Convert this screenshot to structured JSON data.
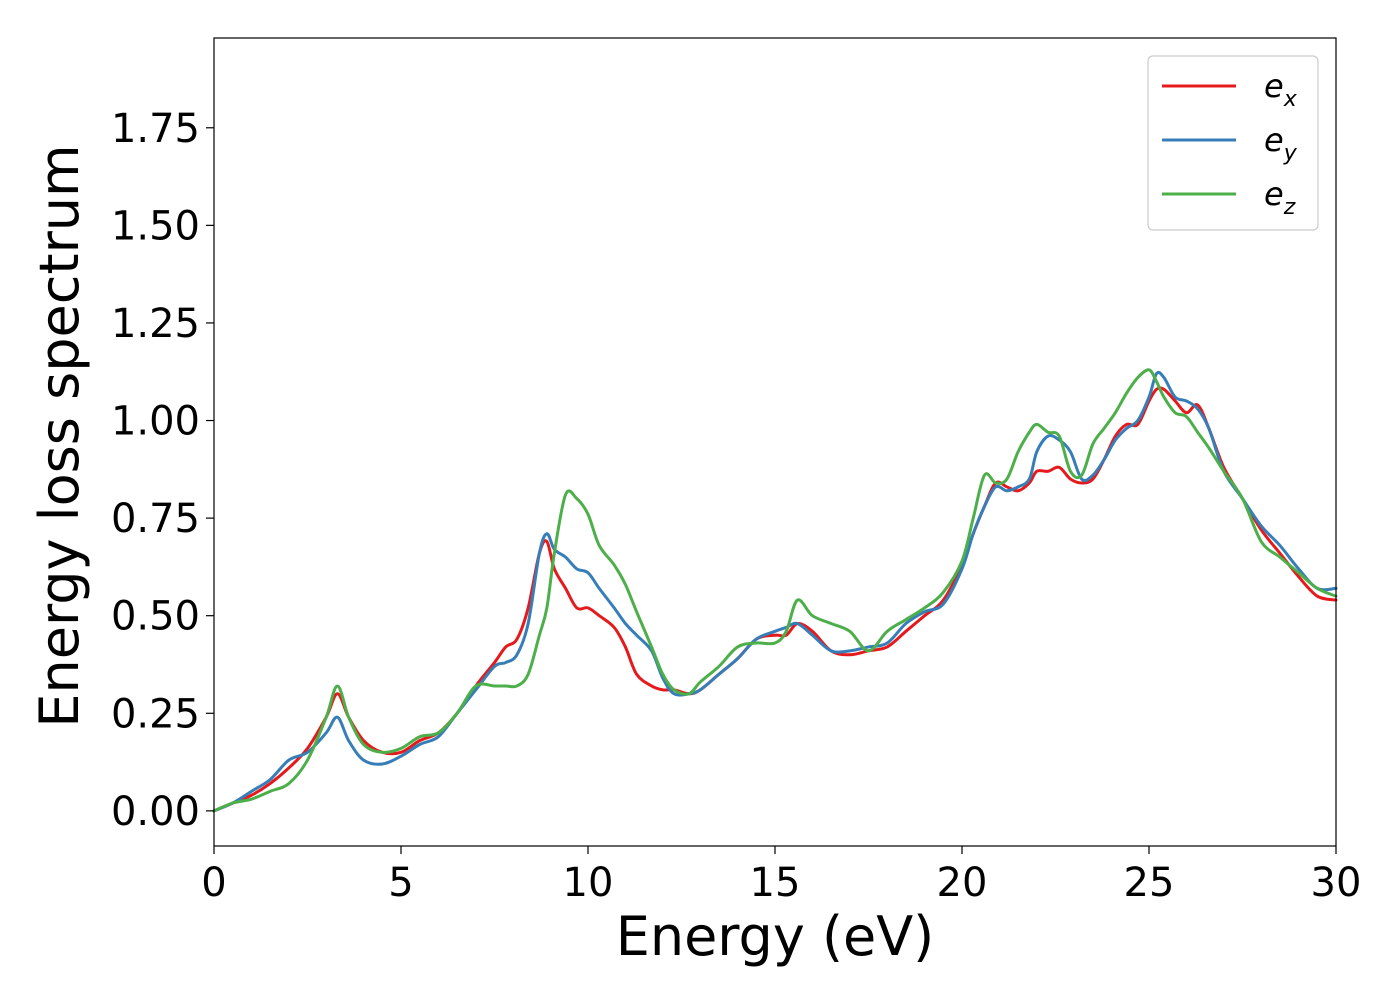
{
  "chart_data": {
    "type": "line",
    "xlabel": "Energy (eV)",
    "ylabel": "Energy loss spectrum",
    "xlim": [
      0,
      30
    ],
    "ylim": [
      -0.09,
      1.98
    ],
    "xticks": [
      "0",
      "5",
      "10",
      "15",
      "20",
      "25",
      "30"
    ],
    "yticks": [
      "0.00",
      "0.25",
      "0.50",
      "0.75",
      "1.00",
      "1.25",
      "1.50",
      "1.75"
    ],
    "grid": false,
    "legend_position": "top-right",
    "series": [
      {
        "name": "e_x",
        "label_base": "e",
        "label_sub": "x",
        "color": "#e41a1c",
        "x": [
          0,
          0.5,
          1.0,
          1.5,
          2.0,
          2.5,
          3.0,
          3.3,
          3.6,
          4.0,
          4.5,
          5.0,
          5.5,
          6.0,
          6.5,
          7.0,
          7.5,
          7.8,
          8.1,
          8.4,
          8.7,
          8.9,
          9.1,
          9.4,
          9.7,
          10.0,
          10.3,
          10.7,
          11.0,
          11.3,
          11.7,
          12.0,
          12.3,
          12.7,
          13.0,
          13.5,
          14.0,
          14.5,
          15.0,
          15.3,
          15.6,
          16.0,
          16.5,
          17.0,
          17.5,
          18.0,
          18.5,
          19.0,
          19.5,
          20.0,
          20.3,
          20.6,
          20.9,
          21.2,
          21.5,
          21.8,
          22.0,
          22.3,
          22.6,
          22.9,
          23.2,
          23.5,
          23.8,
          24.1,
          24.4,
          24.7,
          25.0,
          25.2,
          25.4,
          25.7,
          26.0,
          26.3,
          26.6,
          27.0,
          27.5,
          28.0,
          28.5,
          29.0,
          29.5,
          30.0
        ],
        "y": [
          0.0,
          0.02,
          0.04,
          0.07,
          0.11,
          0.16,
          0.24,
          0.3,
          0.24,
          0.18,
          0.15,
          0.15,
          0.18,
          0.2,
          0.25,
          0.32,
          0.38,
          0.42,
          0.44,
          0.52,
          0.66,
          0.69,
          0.62,
          0.57,
          0.52,
          0.52,
          0.5,
          0.47,
          0.42,
          0.35,
          0.32,
          0.31,
          0.31,
          0.3,
          0.31,
          0.35,
          0.39,
          0.44,
          0.45,
          0.45,
          0.48,
          0.46,
          0.41,
          0.4,
          0.41,
          0.42,
          0.46,
          0.5,
          0.54,
          0.63,
          0.71,
          0.78,
          0.84,
          0.83,
          0.82,
          0.84,
          0.87,
          0.87,
          0.88,
          0.85,
          0.84,
          0.85,
          0.9,
          0.96,
          0.99,
          0.99,
          1.05,
          1.08,
          1.08,
          1.05,
          1.02,
          1.04,
          0.98,
          0.88,
          0.8,
          0.72,
          0.66,
          0.6,
          0.55,
          0.54
        ]
      },
      {
        "name": "e_y",
        "label_base": "e",
        "label_sub": "y",
        "color": "#377eb8",
        "x": [
          0,
          0.5,
          1.0,
          1.5,
          2.0,
          2.5,
          3.0,
          3.3,
          3.6,
          4.0,
          4.5,
          5.0,
          5.5,
          6.0,
          6.5,
          7.0,
          7.5,
          7.8,
          8.1,
          8.4,
          8.7,
          8.9,
          9.1,
          9.4,
          9.7,
          10.0,
          10.3,
          10.7,
          11.0,
          11.3,
          11.7,
          12.0,
          12.3,
          12.7,
          13.0,
          13.5,
          14.0,
          14.5,
          15.0,
          15.3,
          15.6,
          16.0,
          16.5,
          17.0,
          17.5,
          18.0,
          18.5,
          19.0,
          19.5,
          20.0,
          20.3,
          20.6,
          20.9,
          21.2,
          21.5,
          21.8,
          22.0,
          22.3,
          22.6,
          22.9,
          23.2,
          23.5,
          23.8,
          24.1,
          24.4,
          24.7,
          25.0,
          25.2,
          25.4,
          25.7,
          26.0,
          26.3,
          26.6,
          27.0,
          27.5,
          28.0,
          28.5,
          29.0,
          29.5,
          30.0
        ],
        "y": [
          0.0,
          0.02,
          0.05,
          0.08,
          0.13,
          0.15,
          0.2,
          0.24,
          0.18,
          0.13,
          0.12,
          0.14,
          0.17,
          0.19,
          0.25,
          0.31,
          0.37,
          0.38,
          0.4,
          0.48,
          0.66,
          0.71,
          0.67,
          0.65,
          0.62,
          0.61,
          0.57,
          0.52,
          0.48,
          0.45,
          0.41,
          0.34,
          0.3,
          0.3,
          0.31,
          0.35,
          0.39,
          0.44,
          0.46,
          0.47,
          0.48,
          0.45,
          0.41,
          0.41,
          0.42,
          0.43,
          0.48,
          0.51,
          0.53,
          0.62,
          0.71,
          0.78,
          0.83,
          0.82,
          0.83,
          0.85,
          0.92,
          0.96,
          0.95,
          0.92,
          0.85,
          0.86,
          0.9,
          0.95,
          0.98,
          1.0,
          1.06,
          1.12,
          1.11,
          1.06,
          1.05,
          1.03,
          0.98,
          0.87,
          0.8,
          0.73,
          0.68,
          0.62,
          0.57,
          0.57
        ]
      },
      {
        "name": "e_z",
        "label_base": "e",
        "label_sub": "z",
        "color": "#4daf4a",
        "x": [
          0,
          0.5,
          1.0,
          1.5,
          2.0,
          2.5,
          3.0,
          3.3,
          3.6,
          4.0,
          4.5,
          5.0,
          5.5,
          6.0,
          6.5,
          7.0,
          7.5,
          7.8,
          8.1,
          8.4,
          8.7,
          8.9,
          9.1,
          9.4,
          9.7,
          10.0,
          10.3,
          10.7,
          11.0,
          11.3,
          11.7,
          12.0,
          12.3,
          12.7,
          13.0,
          13.5,
          14.0,
          14.5,
          15.0,
          15.3,
          15.6,
          16.0,
          16.5,
          17.0,
          17.5,
          18.0,
          18.5,
          19.0,
          19.5,
          20.0,
          20.3,
          20.6,
          20.9,
          21.2,
          21.5,
          21.8,
          22.0,
          22.3,
          22.6,
          22.9,
          23.2,
          23.5,
          23.8,
          24.1,
          24.4,
          24.7,
          25.0,
          25.2,
          25.4,
          25.7,
          26.0,
          26.3,
          26.6,
          27.0,
          27.5,
          28.0,
          28.5,
          29.0,
          29.5,
          30.0
        ],
        "y": [
          0.0,
          0.02,
          0.03,
          0.05,
          0.07,
          0.13,
          0.24,
          0.32,
          0.24,
          0.17,
          0.15,
          0.16,
          0.19,
          0.2,
          0.25,
          0.32,
          0.32,
          0.32,
          0.32,
          0.35,
          0.45,
          0.52,
          0.66,
          0.81,
          0.8,
          0.76,
          0.68,
          0.63,
          0.58,
          0.51,
          0.42,
          0.35,
          0.31,
          0.3,
          0.33,
          0.37,
          0.42,
          0.43,
          0.43,
          0.46,
          0.54,
          0.5,
          0.48,
          0.46,
          0.41,
          0.46,
          0.49,
          0.52,
          0.56,
          0.64,
          0.75,
          0.86,
          0.84,
          0.85,
          0.92,
          0.97,
          0.99,
          0.97,
          0.96,
          0.87,
          0.86,
          0.94,
          0.98,
          1.02,
          1.07,
          1.11,
          1.13,
          1.1,
          1.06,
          1.02,
          1.01,
          0.97,
          0.93,
          0.87,
          0.8,
          0.69,
          0.65,
          0.61,
          0.57,
          0.55
        ]
      }
    ]
  }
}
